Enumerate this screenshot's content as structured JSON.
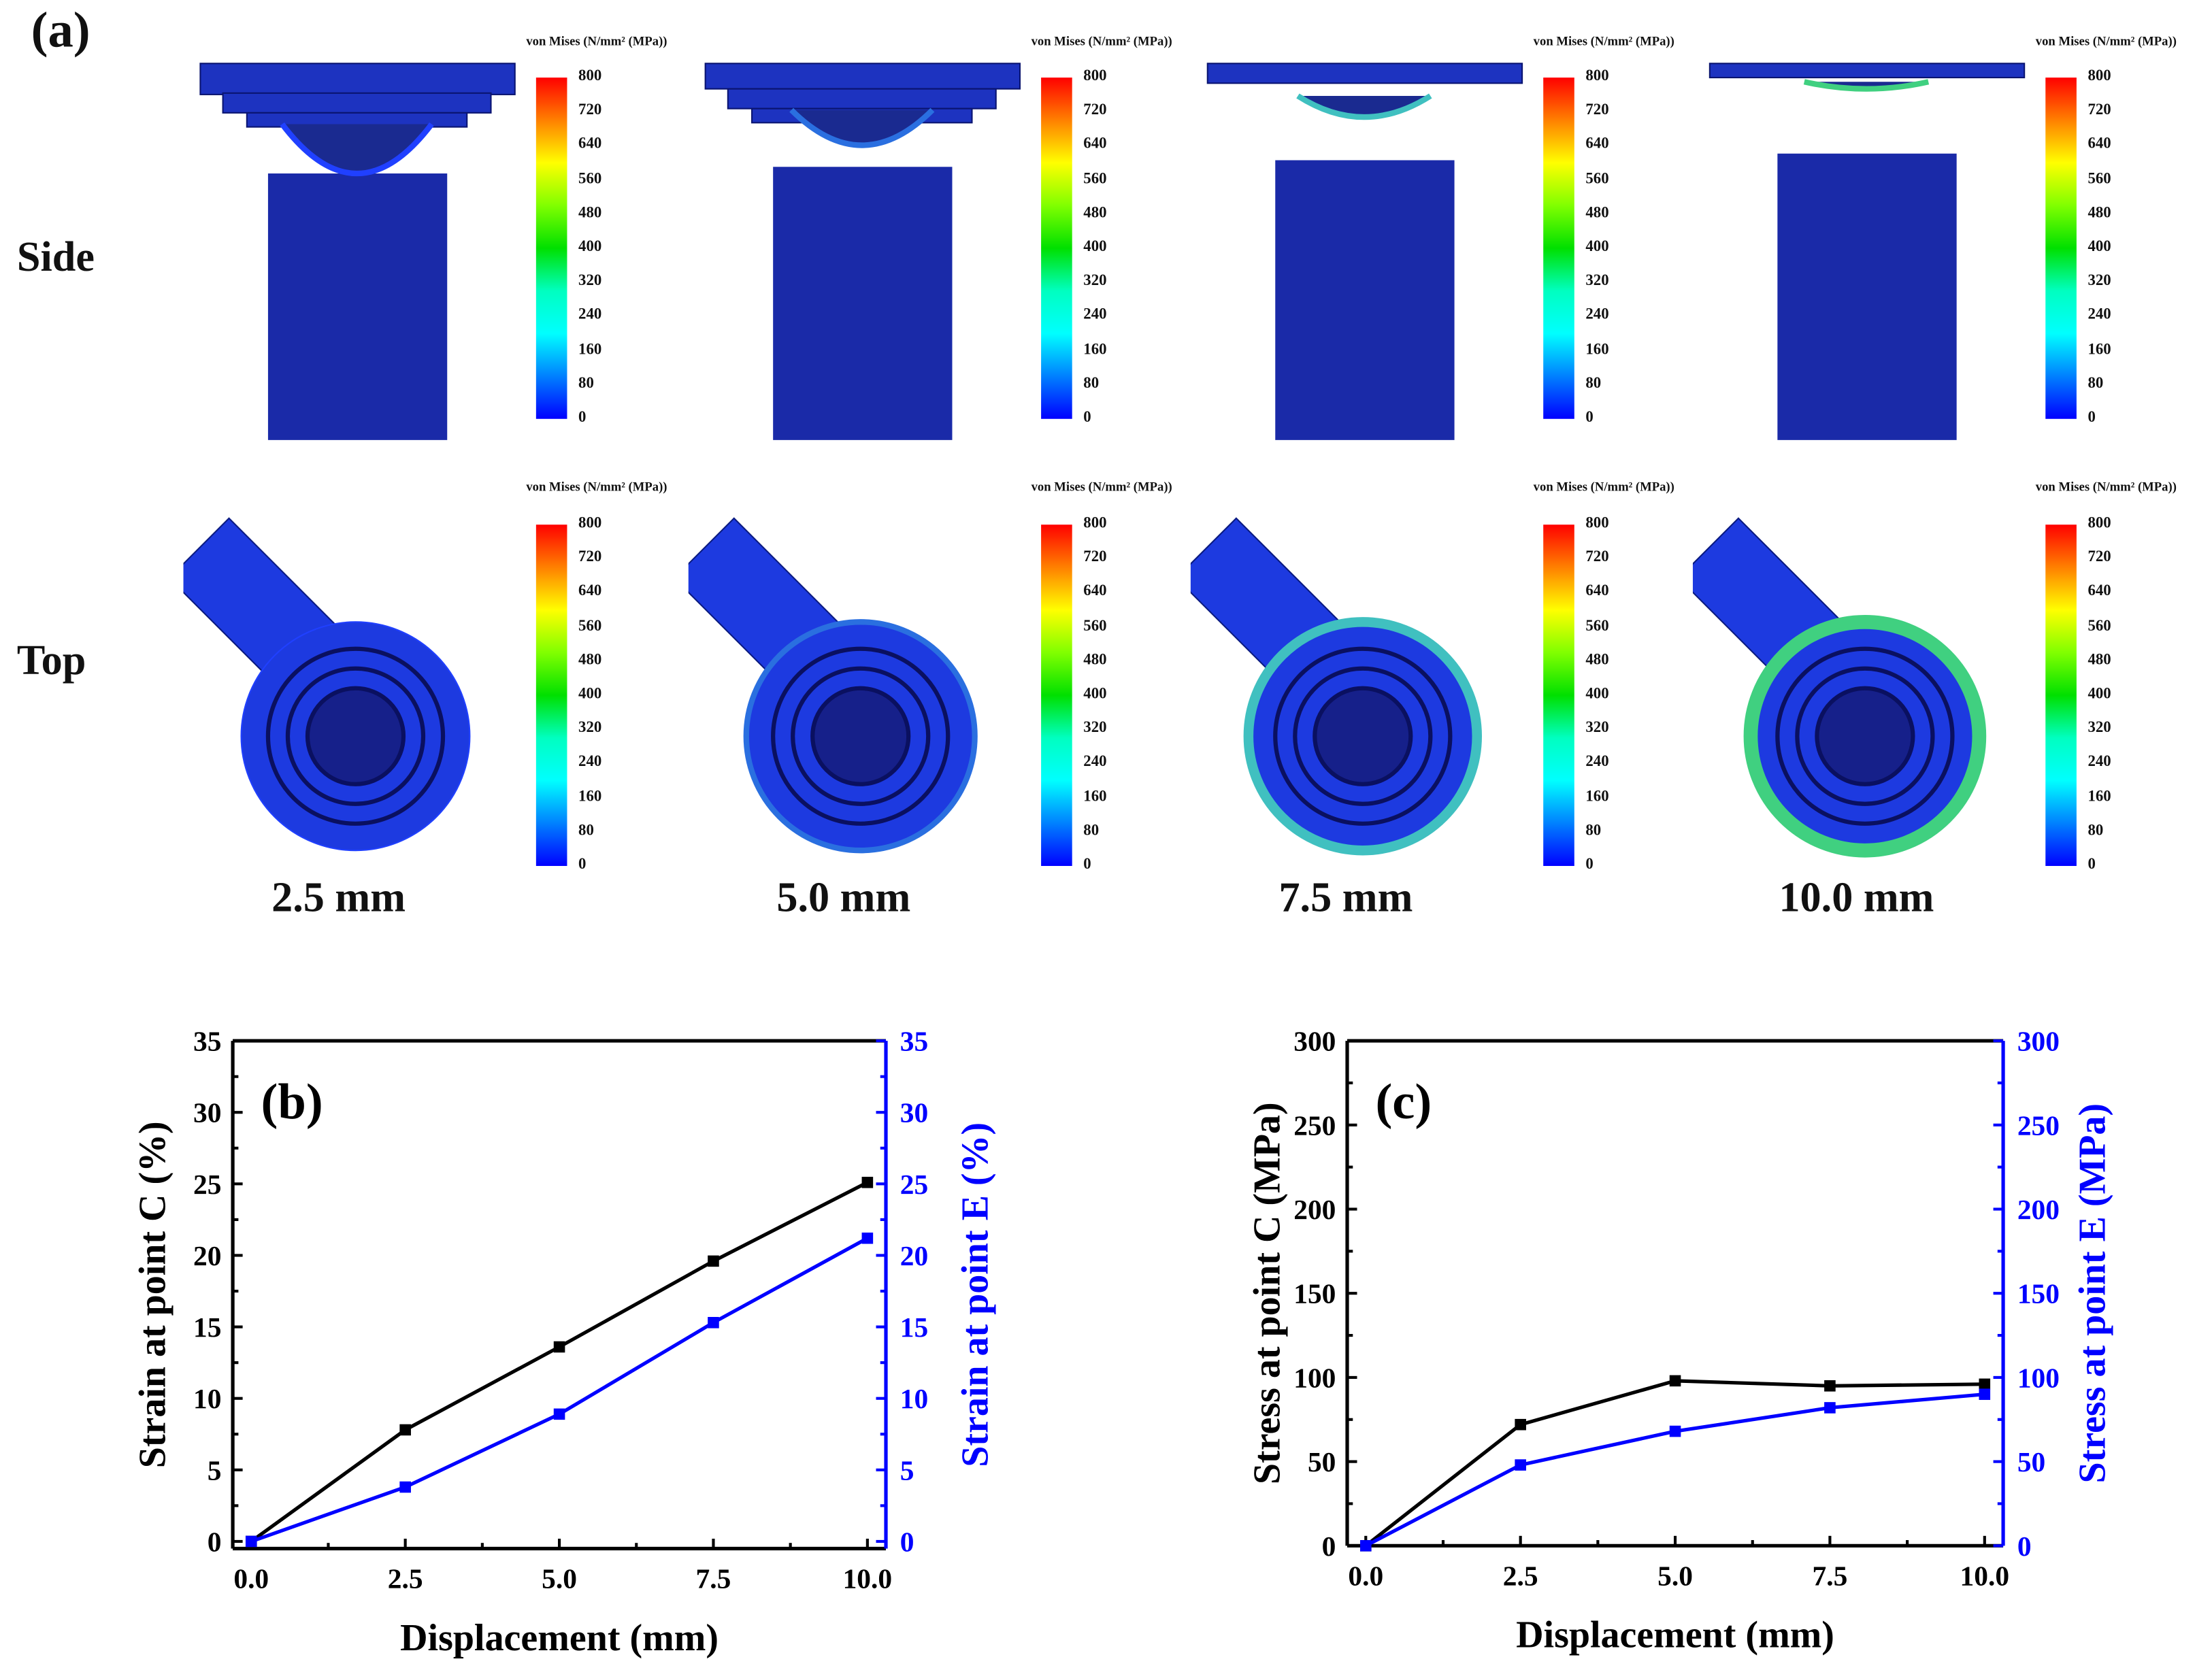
{
  "panel_a": {
    "label": "(a)",
    "row_labels": [
      "Side",
      "Top"
    ],
    "colorbar": {
      "title": "von Mises (N/mm² (MPa))",
      "ticks": [
        "800",
        "720",
        "640",
        "560",
        "480",
        "400",
        "320",
        "240",
        "160",
        "80",
        "0"
      ],
      "colors": [
        "#ff0000",
        "#ff8000",
        "#ffff00",
        "#80ff00",
        "#00e000",
        "#00ffc0",
        "#00ffff",
        "#0080ff",
        "#0000ff"
      ]
    },
    "captions": [
      "2.5 mm",
      "5.0 mm",
      "7.5 mm",
      "10.0 mm"
    ]
  },
  "chart_data": [
    {
      "type": "line",
      "panel_label": "(b)",
      "xlabel": "Displacement (mm)",
      "ylabel": "Strain at point C (%)",
      "ylabel_right": "Strain at point E (%)",
      "x": [
        0.0,
        2.5,
        5.0,
        7.5,
        10.0
      ],
      "xticks": [
        "0.0",
        "2.5",
        "5.0",
        "7.5",
        "10.0"
      ],
      "xlim": [
        -0.3,
        10.3
      ],
      "ylim": [
        -0.5,
        35
      ],
      "yticks": [
        "0",
        "5",
        "10",
        "15",
        "20",
        "25",
        "30",
        "35"
      ],
      "series": [
        {
          "name": "Strain at point C",
          "axis": "left",
          "color": "#000000",
          "values": [
            0,
            7.8,
            13.6,
            19.6,
            25.1
          ]
        },
        {
          "name": "Strain at point E",
          "axis": "right",
          "color": "#0000ff",
          "values": [
            0,
            3.8,
            8.9,
            15.3,
            21.2
          ]
        }
      ]
    },
    {
      "type": "line",
      "panel_label": "(c)",
      "xlabel": "Displacement (mm)",
      "ylabel": "Stress at point C (MPa)",
      "ylabel_right": "Stress at point E (MPa)",
      "x": [
        0.0,
        2.5,
        5.0,
        7.5,
        10.0
      ],
      "xticks": [
        "0.0",
        "2.5",
        "5.0",
        "7.5",
        "10.0"
      ],
      "xlim": [
        -0.3,
        10.3
      ],
      "ylim": [
        0,
        300
      ],
      "yticks": [
        "0",
        "50",
        "100",
        "150",
        "200",
        "250",
        "300"
      ],
      "series": [
        {
          "name": "Stress at point C",
          "axis": "left",
          "color": "#000000",
          "values": [
            0,
            72,
            98,
            95,
            96
          ]
        },
        {
          "name": "Stress at point E",
          "axis": "right",
          "color": "#0000ff",
          "values": [
            0,
            48,
            68,
            82,
            90
          ]
        }
      ]
    }
  ]
}
